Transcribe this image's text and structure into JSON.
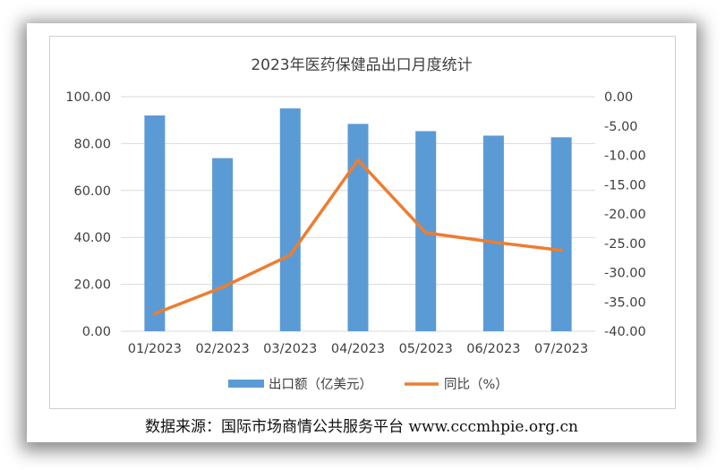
{
  "chart_data": {
    "type": "bar+line",
    "title": "2023年医药保健品出口月度统计",
    "categories": [
      "01/2023",
      "02/2023",
      "03/2023",
      "04/2023",
      "05/2023",
      "06/2023",
      "07/2023"
    ],
    "series": [
      {
        "name": "出口额（亿美元）",
        "type": "bar",
        "axis": "left",
        "color": "#5b9bd5",
        "values": [
          92.0,
          73.8,
          95.0,
          88.4,
          85.3,
          83.4,
          82.7
        ]
      },
      {
        "name": "同比（%）",
        "type": "line",
        "axis": "right",
        "color": "#ed7d31",
        "values": [
          -37.0,
          -32.5,
          -27.0,
          -10.8,
          -23.2,
          -24.8,
          -26.2
        ]
      }
    ],
    "y_left": {
      "range": [
        0,
        100
      ],
      "ticks": [
        "0.00",
        "20.00",
        "40.00",
        "60.00",
        "80.00",
        "100.00"
      ]
    },
    "y_right": {
      "range": [
        -40,
        0
      ],
      "ticks": [
        "0.00",
        "-5.00",
        "-10.00",
        "-15.00",
        "-20.00",
        "-25.00",
        "-30.00",
        "-35.00",
        "-40.00"
      ]
    },
    "grid": true,
    "legend_position": "bottom"
  },
  "source_text": "数据来源：国际市场商情公共服务平台 www.cccmhpie.org.cn"
}
